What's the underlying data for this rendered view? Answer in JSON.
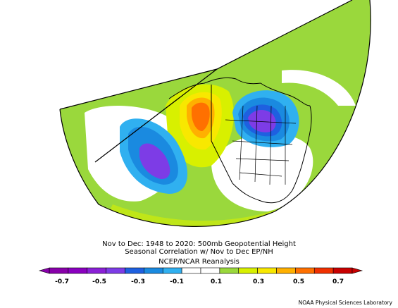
{
  "map": {
    "projection": "polar stereographic sector",
    "region": "Northern Hemisphere / North America & Northeast Pacific",
    "variable": "500mb geopotential height seasonal correlation",
    "features": [
      {
        "name": "negative-anomaly-pacific",
        "sign": "negative",
        "peak": -0.5
      },
      {
        "name": "positive-anomaly-alaska",
        "sign": "positive",
        "peak": 0.5
      },
      {
        "name": "negative-anomaly-canada",
        "sign": "negative",
        "peak": -0.5
      }
    ],
    "box_region": "EP/NH"
  },
  "caption": {
    "line1": "Nov to Dec: 1948 to 2020: 500mb Geopotential Height",
    "line2": "Seasonal Correlation w/ Nov to Dec EP/NH",
    "line3": "NCEP/NCAR Reanalysis"
  },
  "colorbar": {
    "colors": [
      "#8800aa",
      "#8a00bf",
      "#8a20d6",
      "#7d3ce6",
      "#1e60e0",
      "#1a8ae0",
      "#30b0f0",
      "#ffffff",
      "#ffffff",
      "#9ad83c",
      "#d8f000",
      "#f8e800",
      "#ffb000",
      "#ff7000",
      "#f03000",
      "#c80000"
    ],
    "tick_labels": [
      "-0.7",
      "-0.5",
      "-0.3",
      "-0.1",
      "0.1",
      "0.3",
      "0.5",
      "0.7"
    ]
  },
  "credit": "NOAA Physical Sciences Laboratory"
}
